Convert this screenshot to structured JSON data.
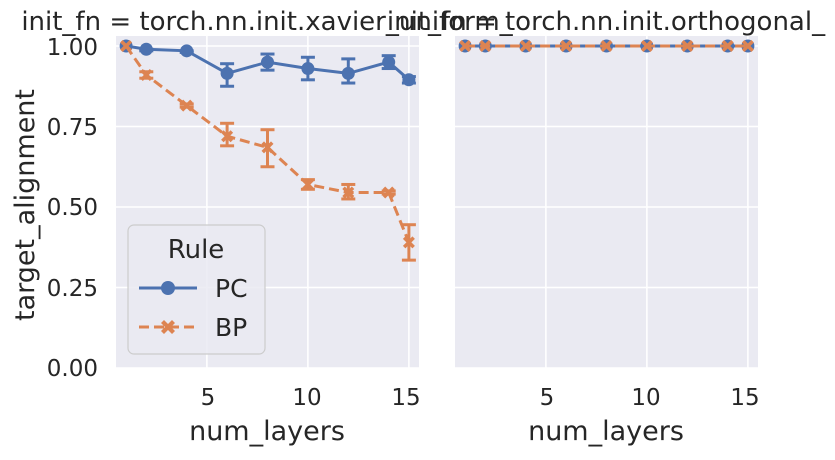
{
  "colors": {
    "PC": "#4c72b0",
    "BP": "#dd8452",
    "panel_bg": "#eaeaf2"
  },
  "legend": {
    "title": "Rule",
    "items": [
      "PC",
      "BP"
    ],
    "placement": "lower-left of left panel"
  },
  "chart_data": [
    {
      "type": "line",
      "title": "init_fn = torch.nn.init.xavier_uniform_",
      "xlabel": "num_layers",
      "ylabel": "target_alignment",
      "xlim": [
        0.5,
        15.5
      ],
      "ylim": [
        0,
        1.0
      ],
      "xticks": [
        5,
        10,
        15
      ],
      "yticks": [
        "0.00",
        "0.25",
        "0.50",
        "0.75",
        "1.00"
      ],
      "grid": true,
      "x": [
        1,
        2,
        4,
        6,
        8,
        10,
        12,
        14,
        15
      ],
      "series": [
        {
          "name": "PC",
          "marker": "circle",
          "dash": "solid",
          "values": [
            1.0,
            0.99,
            0.985,
            0.915,
            0.95,
            0.93,
            0.915,
            0.95,
            0.895
          ],
          "err_low": [
            1.0,
            0.985,
            0.98,
            0.875,
            0.925,
            0.895,
            0.885,
            0.93,
            0.885
          ],
          "err_high": [
            1.0,
            0.99,
            0.985,
            0.945,
            0.975,
            0.965,
            0.96,
            0.97,
            0.905
          ]
        },
        {
          "name": "BP",
          "marker": "x",
          "dash": "dashed",
          "values": [
            1.0,
            0.91,
            0.815,
            0.72,
            0.685,
            0.57,
            0.545,
            0.545,
            0.39
          ],
          "err_low": [
            1.0,
            0.9,
            0.81,
            0.69,
            0.625,
            0.555,
            0.525,
            0.54,
            0.335
          ],
          "err_high": [
            1.0,
            0.92,
            0.82,
            0.76,
            0.74,
            0.585,
            0.57,
            0.55,
            0.445
          ]
        }
      ]
    },
    {
      "type": "line",
      "title": "init_fn = torch.nn.init.orthogonal_",
      "xlabel": "num_layers",
      "ylabel": "",
      "xlim": [
        0.5,
        15.5
      ],
      "ylim": [
        0,
        1.0
      ],
      "xticks": [
        5,
        10,
        15
      ],
      "grid": true,
      "x": [
        1,
        2,
        4,
        6,
        8,
        10,
        12,
        14,
        15
      ],
      "series": [
        {
          "name": "PC",
          "marker": "circle",
          "dash": "solid",
          "values": [
            1.0,
            1.0,
            1.0,
            1.0,
            1.0,
            1.0,
            1.0,
            1.0,
            1.0
          ]
        },
        {
          "name": "BP",
          "marker": "x",
          "dash": "dashed",
          "values": [
            1.0,
            1.0,
            1.0,
            1.0,
            1.0,
            1.0,
            1.0,
            1.0,
            1.0
          ]
        }
      ]
    }
  ]
}
